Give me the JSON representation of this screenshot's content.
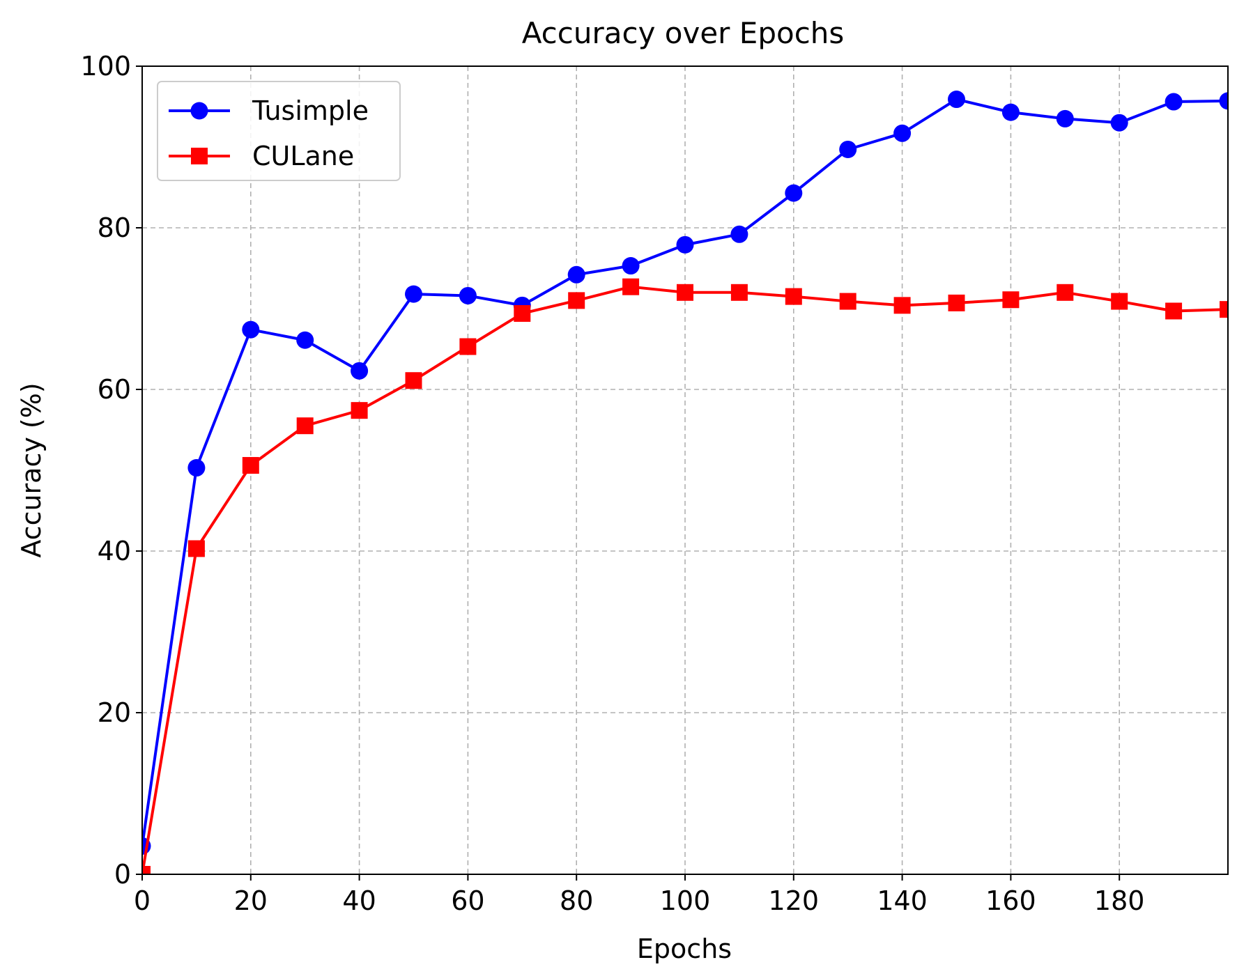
{
  "chart_data": {
    "type": "line",
    "title": "Accuracy over Epochs",
    "xlabel": "Epochs",
    "ylabel": "Accuracy (%)",
    "xlim": [
      0,
      200
    ],
    "ylim": [
      0,
      100
    ],
    "xticks": [
      0,
      20,
      40,
      60,
      80,
      100,
      120,
      140,
      160,
      180
    ],
    "yticks": [
      0,
      20,
      40,
      60,
      80,
      100
    ],
    "grid": true,
    "legend_position": "top-left",
    "x": [
      0,
      10,
      20,
      30,
      40,
      50,
      60,
      70,
      80,
      90,
      100,
      110,
      120,
      130,
      140,
      150,
      160,
      170,
      180,
      190,
      200
    ],
    "series": [
      {
        "name": "Tusimple",
        "color": "#0000ff",
        "marker": "circle",
        "values": [
          3.5,
          50.3,
          67.4,
          66.1,
          62.3,
          71.8,
          71.6,
          70.4,
          74.2,
          75.3,
          77.9,
          79.2,
          84.3,
          89.7,
          91.7,
          95.9,
          94.3,
          93.5,
          93.0,
          95.6,
          95.7
        ]
      },
      {
        "name": "CULane",
        "color": "#ff0000",
        "marker": "square",
        "values": [
          0.0,
          40.3,
          50.6,
          55.5,
          57.4,
          61.1,
          65.3,
          69.4,
          71.0,
          72.7,
          72.0,
          72.0,
          71.5,
          70.9,
          70.4,
          70.7,
          71.1,
          72.0,
          70.9,
          69.7,
          69.9
        ]
      }
    ]
  }
}
